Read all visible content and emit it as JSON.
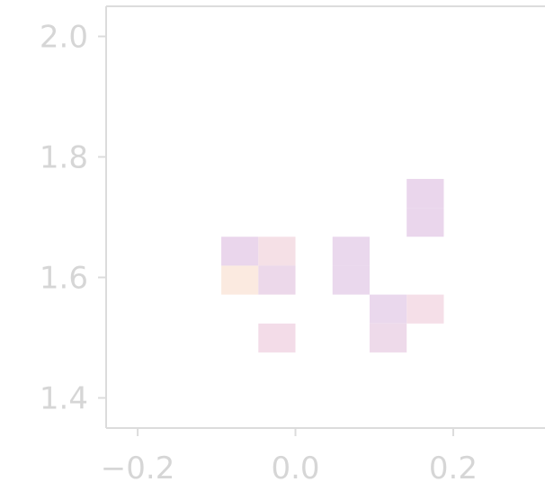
{
  "chart_data": {
    "type": "heatmap",
    "title": "",
    "xlabel": "",
    "ylabel": "",
    "xlim": [
      -0.24,
      0.33
    ],
    "ylim": [
      1.35,
      2.05
    ],
    "grid": false,
    "x_ticks": [
      {
        "value": -0.2,
        "label": "−0.2"
      },
      {
        "value": 0.0,
        "label": "0.0"
      },
      {
        "value": 0.2,
        "label": "0.2"
      }
    ],
    "y_ticks": [
      {
        "value": 1.4,
        "label": "1.4"
      },
      {
        "value": 1.6,
        "label": "1.6"
      },
      {
        "value": 1.8,
        "label": "1.8"
      },
      {
        "value": 2.0,
        "label": "2.0"
      }
    ],
    "bin_width": 0.047,
    "bin_height": 0.048,
    "cells": [
      {
        "x": -0.0705,
        "y": 1.6435,
        "color": "#ead6ec"
      },
      {
        "x": -0.0235,
        "y": 1.6435,
        "color": "#f5e0e6"
      },
      {
        "x": -0.0705,
        "y": 1.5955,
        "color": "#fbeae0"
      },
      {
        "x": -0.0235,
        "y": 1.5955,
        "color": "#ecd8ea"
      },
      {
        "x": 0.0705,
        "y": 1.6435,
        "color": "#ead8ed"
      },
      {
        "x": 0.0705,
        "y": 1.5955,
        "color": "#ead8ed"
      },
      {
        "x": 0.1645,
        "y": 1.7395,
        "color": "#ead6ec"
      },
      {
        "x": 0.1645,
        "y": 1.6915,
        "color": "#ead6ec"
      },
      {
        "x": 0.1175,
        "y": 1.5475,
        "color": "#ead8ed"
      },
      {
        "x": 0.1645,
        "y": 1.5475,
        "color": "#f5dfe8"
      },
      {
        "x": 0.1175,
        "y": 1.4995,
        "color": "#eedaea"
      },
      {
        "x": -0.0235,
        "y": 1.4995,
        "color": "#f3dce8"
      }
    ]
  }
}
